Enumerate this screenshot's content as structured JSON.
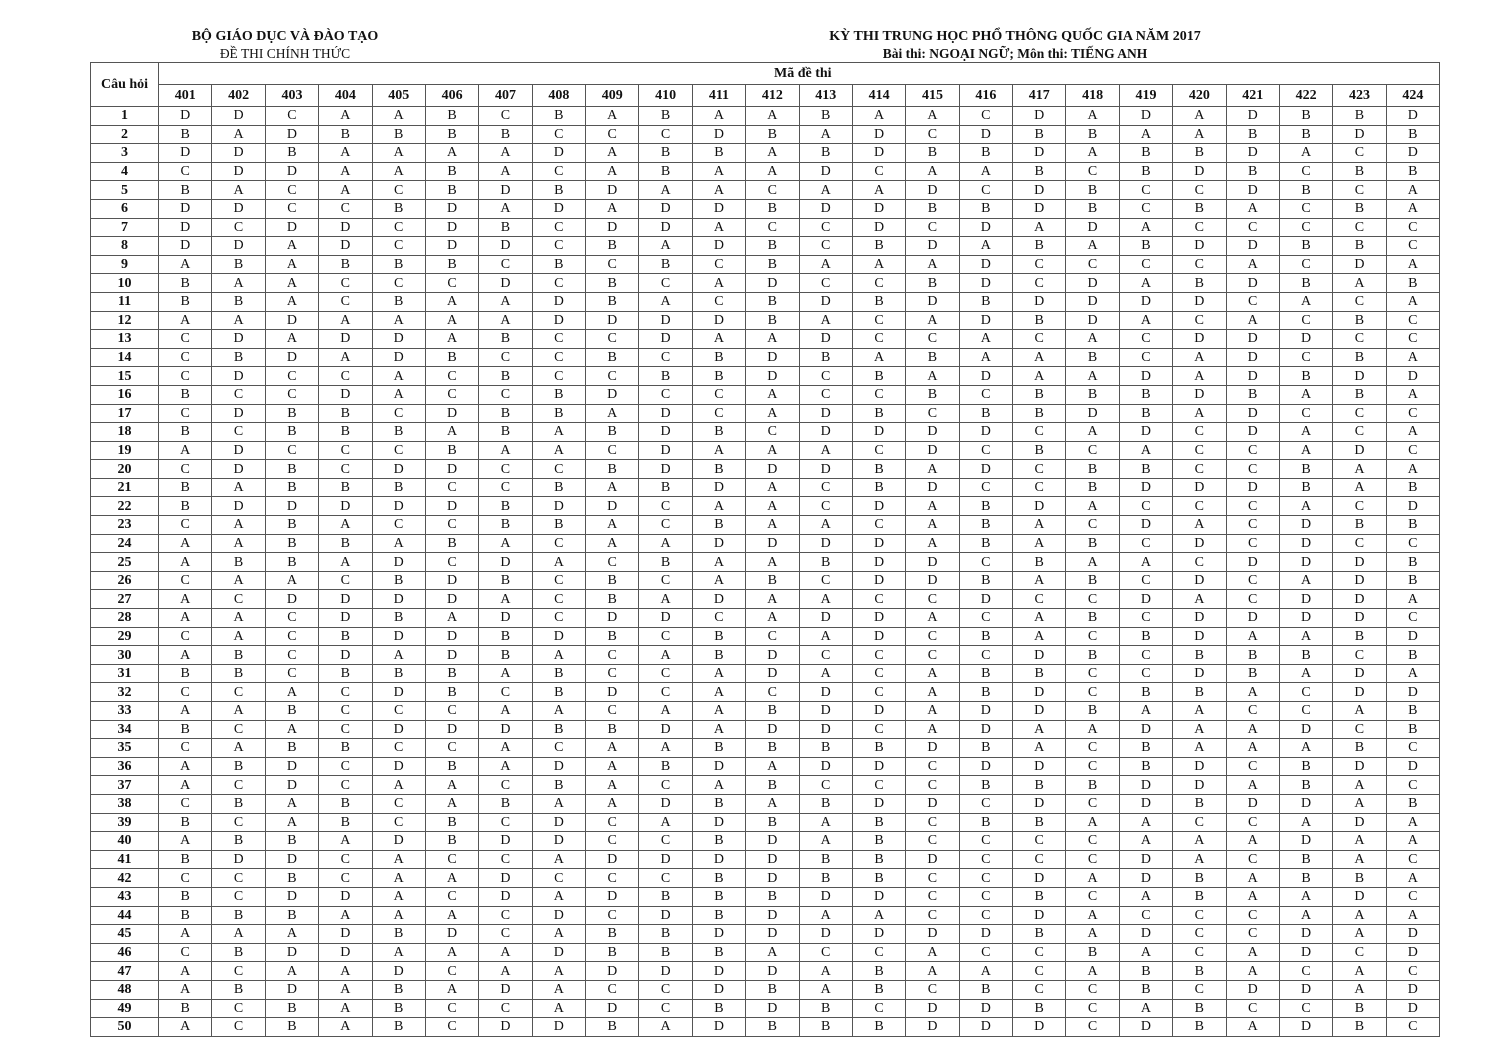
{
  "header_left": {
    "title": "BỘ GIÁO DỤC VÀ ĐÀO TẠO",
    "subtitle": "ĐỀ THI CHÍNH THỨC"
  },
  "header_right": {
    "title": "KỲ THI TRUNG HỌC PHỔ THÔNG QUỐC GIA NĂM 2017",
    "subtitle": "Bài thi:  NGOẠI NGỮ; Môn thi: TIẾNG ANH"
  },
  "table": {
    "question_header": "Câu hỏi",
    "code_header": "Mã đề thi",
    "codes": [
      "401",
      "402",
      "403",
      "404",
      "405",
      "406",
      "407",
      "408",
      "409",
      "410",
      "411",
      "412",
      "413",
      "414",
      "415",
      "416",
      "417",
      "418",
      "419",
      "420",
      "421",
      "422",
      "423",
      "424"
    ],
    "rows": [
      {
        "q": "1",
        "answers": "DDCAABCBABAABAACDADADBBD"
      },
      {
        "q": "2",
        "answers": "BADBBBBCCCDBADCDBBAABBDB"
      },
      {
        "q": "3",
        "answers": "DDBAAAADABBABDBBDABBDACD"
      },
      {
        "q": "4",
        "answers": "CDDAABACABAADCAABCBDBCBB"
      },
      {
        "q": "5",
        "answers": "BACACBDBDAACAADCDBCCDBCA"
      },
      {
        "q": "6",
        "answers": "DDCCBDADADDBDDBBDBCBACBA"
      },
      {
        "q": "7",
        "answers": "DCDDCDBCDDACCDCDADACCCCC"
      },
      {
        "q": "8",
        "answers": "DDADCDDCBADBCBDABABDDBBC"
      },
      {
        "q": "9",
        "answers": "ABABBBCBCBCBAAADCCCCACDA"
      },
      {
        "q": "10",
        "answers": "BAACCCDCBCADCCBDCDABDBAB"
      },
      {
        "q": "11",
        "answers": "BBACBAADBACBDBDBDDDDCACA"
      },
      {
        "q": "12",
        "answers": "AADAAAADDDDBACADBDACACBC"
      },
      {
        "q": "13",
        "answers": "CDADDABCCDAADCCACACDDDCC"
      },
      {
        "q": "14",
        "answers": "CBDADBCCBCBDBABAABCADCBA"
      },
      {
        "q": "15",
        "answers": "CDCCACBCCBBDCBADAADADBDD"
      },
      {
        "q": "16",
        "answers": "BCCDACCBDCCACCBCBBBDBABA"
      },
      {
        "q": "17",
        "answers": "CDBBCDBBADCADBCBBDBADCCC"
      },
      {
        "q": "18",
        "answers": "BCBBBABABDBCDDDDCADCDACA"
      },
      {
        "q": "19",
        "answers": "ADCCCBAACDAAACDCBCACCADC"
      },
      {
        "q": "20",
        "answers": "CDBCDDCCBDBDDBADCBBCCBAA"
      },
      {
        "q": "21",
        "answers": "BABBBCCBABDACBDCCBDDDBAB"
      },
      {
        "q": "22",
        "answers": "BDDDDDBDDCAACDABDACCCACD"
      },
      {
        "q": "23",
        "answers": "CABACCBBACBAACABACDACDBB"
      },
      {
        "q": "24",
        "answers": "AABBABACAADDDDABABCDCDCC"
      },
      {
        "q": "25",
        "answers": "ABBADCDACBAABDDCBAACDDDB"
      },
      {
        "q": "26",
        "answers": "CAACBDBCBCABCDDBABCDCADB"
      },
      {
        "q": "27",
        "answers": "ACDDDDACBADAACCDCCDACDDA"
      },
      {
        "q": "28",
        "answers": "AACDBADCDDCADDACABCDDDDC"
      },
      {
        "q": "29",
        "answers": "CACBDDBDBCBCADCBACBDAABD"
      },
      {
        "q": "30",
        "answers": "ABCDADBACABDCCCCDBCBBBCB"
      },
      {
        "q": "31",
        "answers": "BBCBBBABCCADACABBCCDBADA"
      },
      {
        "q": "32",
        "answers": "CCACDBCBDCACDCABDCBBACDD"
      },
      {
        "q": "33",
        "answers": "AABCCCAACAABDDADDBAACCAB"
      },
      {
        "q": "34",
        "answers": "BCACDDDBBDADDCADAADAADCB"
      },
      {
        "q": "35",
        "answers": "CABBCCACAABBBBDBACBAAABC"
      },
      {
        "q": "36",
        "answers": "ABDCDBADABDADDCDDCBDCBDD"
      },
      {
        "q": "37",
        "answers": "ACDCAACBACABCCCBBBDDABAC"
      },
      {
        "q": "38",
        "answers": "CBABCABAADBABDDCDCDBDDAB"
      },
      {
        "q": "39",
        "answers": "BCABCBCDCADBABCBBAACCADA"
      },
      {
        "q": "40",
        "answers": "ABBADBDDCCBDABCCCCAAADAA"
      },
      {
        "q": "41",
        "answers": "BDDCACCADDDDBBDCCCDACBAC"
      },
      {
        "q": "42",
        "answers": "CCBCAADCCCBDBBCCDADBABBA"
      },
      {
        "q": "43",
        "answers": "BCDDACDADBBBDDCCBCABAADC"
      },
      {
        "q": "44",
        "answers": "BBBAAACDCDBDAACCDACCCAAA"
      },
      {
        "q": "45",
        "answers": "AAADBDCABBDDDDDDBADCCDAD"
      },
      {
        "q": "46",
        "answers": "CBDDAAADBBBACCACCBACADCD"
      },
      {
        "q": "47",
        "answers": "ACAADCAADDDDABAACABBACAC"
      },
      {
        "q": "48",
        "answers": "ABDABADACCDBABCBCCBCDDAD"
      },
      {
        "q": "49",
        "answers": "BCBABCCADCBDBCDDBCABCCBD"
      },
      {
        "q": "50",
        "answers": "ACBABCDDBADBBBDDDCDBADBC"
      }
    ]
  }
}
